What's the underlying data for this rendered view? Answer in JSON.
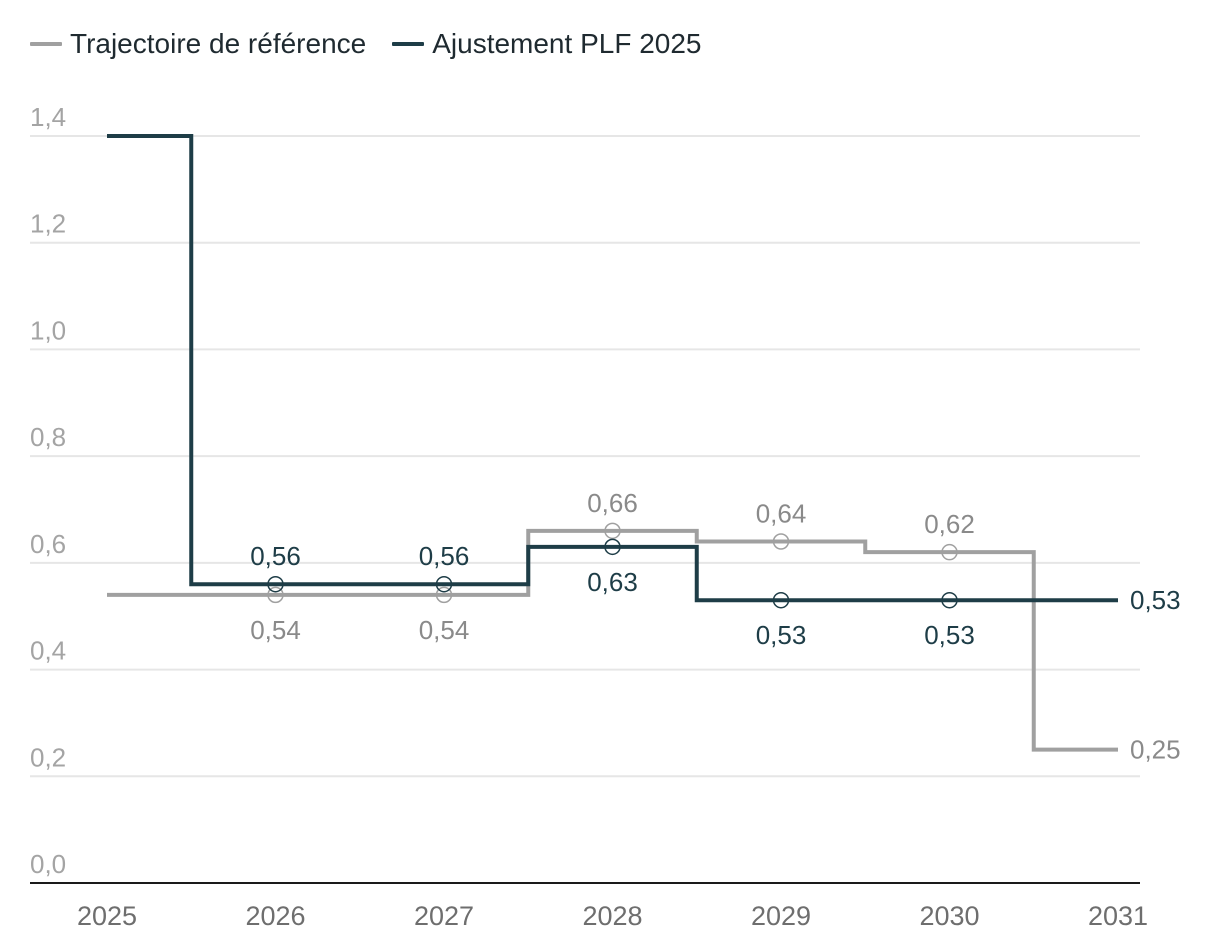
{
  "chart_data": {
    "type": "line",
    "step": true,
    "title": "",
    "xlabel": "",
    "ylabel": "",
    "x": [
      2025,
      2026,
      2027,
      2028,
      2029,
      2030,
      2031
    ],
    "x_tick_labels": [
      "2025",
      "2026",
      "2027",
      "2028",
      "2029",
      "2030",
      "2031"
    ],
    "ylim": [
      0.0,
      1.4
    ],
    "y_ticks": [
      0.0,
      0.2,
      0.4,
      0.6,
      0.8,
      1.0,
      1.2,
      1.4
    ],
    "y_tick_labels": [
      "0,0",
      "0,2",
      "0,4",
      "0,6",
      "0,8",
      "1,0",
      "1,2",
      "1,4"
    ],
    "grid": true,
    "legend_position": "top-left",
    "series": [
      {
        "name": "Trajectoire de référence",
        "color": "#a0a0a0",
        "label_color": "#8a8a8a",
        "values": [
          0.54,
          0.54,
          0.54,
          0.66,
          0.64,
          0.62,
          0.25
        ],
        "data_labels": [
          null,
          "0,54",
          "0,54",
          "0,66",
          "0,64",
          "0,62",
          "0,25"
        ]
      },
      {
        "name": "Ajustement PLF 2025",
        "color": "#1e3d47",
        "label_color": "#1e3d47",
        "values": [
          1.4,
          0.56,
          0.56,
          0.63,
          0.53,
          0.53,
          0.53
        ],
        "data_labels": [
          null,
          "0,56",
          "0,56",
          "0,63",
          "0,53",
          "0,53",
          "0,53"
        ]
      }
    ]
  }
}
